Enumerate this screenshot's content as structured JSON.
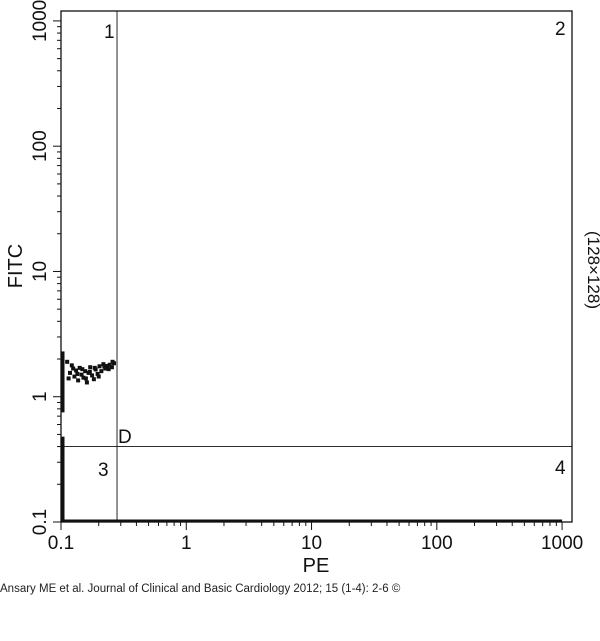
{
  "chart_data": {
    "type": "scatter",
    "x_scale": "log",
    "y_scale": "log",
    "xlabel": "PE",
    "ylabel": "FITC",
    "xlim": [
      0.1,
      1200
    ],
    "ylim": [
      0.1,
      1200
    ],
    "x_ticks": [
      {
        "value": 0.1,
        "label": "0.1"
      },
      {
        "value": 1,
        "label": "1"
      },
      {
        "value": 10,
        "label": "10"
      },
      {
        "value": 100,
        "label": "100"
      },
      {
        "value": 1000,
        "label": "1000"
      }
    ],
    "y_ticks": [
      {
        "value": 0.1,
        "label": "0.1"
      },
      {
        "value": 1,
        "label": "1"
      },
      {
        "value": 10,
        "label": "10"
      },
      {
        "value": 100,
        "label": "100"
      },
      {
        "value": 1000,
        "label": "1000"
      }
    ],
    "quadrant_gates": {
      "x": 0.28,
      "y": 0.4,
      "label": "D"
    },
    "quadrant_labels": [
      "1",
      "2",
      "3",
      "4"
    ],
    "side_label": "(128×128)",
    "grid": false,
    "points": [
      {
        "x": 0.112,
        "y": 1.9
      },
      {
        "x": 0.118,
        "y": 1.55
      },
      {
        "x": 0.122,
        "y": 1.78
      },
      {
        "x": 0.128,
        "y": 1.45
      },
      {
        "x": 0.132,
        "y": 1.62
      },
      {
        "x": 0.137,
        "y": 1.35
      },
      {
        "x": 0.141,
        "y": 1.7
      },
      {
        "x": 0.146,
        "y": 1.5
      },
      {
        "x": 0.151,
        "y": 1.42
      },
      {
        "x": 0.156,
        "y": 1.6
      },
      {
        "x": 0.161,
        "y": 1.3
      },
      {
        "x": 0.166,
        "y": 1.55
      },
      {
        "x": 0.171,
        "y": 1.72
      },
      {
        "x": 0.177,
        "y": 1.48
      },
      {
        "x": 0.183,
        "y": 1.38
      },
      {
        "x": 0.189,
        "y": 1.65
      },
      {
        "x": 0.196,
        "y": 1.52
      },
      {
        "x": 0.203,
        "y": 1.75
      },
      {
        "x": 0.21,
        "y": 1.6
      },
      {
        "x": 0.218,
        "y": 1.82
      },
      {
        "x": 0.226,
        "y": 1.68
      },
      {
        "x": 0.235,
        "y": 1.76
      },
      {
        "x": 0.245,
        "y": 1.8
      },
      {
        "x": 0.255,
        "y": 1.72
      },
      {
        "x": 0.265,
        "y": 1.85
      },
      {
        "x": 0.115,
        "y": 1.4
      },
      {
        "x": 0.125,
        "y": 1.68
      },
      {
        "x": 0.135,
        "y": 1.52
      },
      {
        "x": 0.148,
        "y": 1.66
      },
      {
        "x": 0.158,
        "y": 1.4
      },
      {
        "x": 0.17,
        "y": 1.58
      },
      {
        "x": 0.186,
        "y": 1.7
      },
      {
        "x": 0.2,
        "y": 1.45
      },
      {
        "x": 0.222,
        "y": 1.74
      },
      {
        "x": 0.24,
        "y": 1.66
      },
      {
        "x": 0.258,
        "y": 1.9
      }
    ],
    "axis_bands": [
      {
        "axis": "y",
        "at_x": 0.1,
        "from": 0.1,
        "to": 0.48
      },
      {
        "axis": "y",
        "at_x": 0.1,
        "from": 0.75,
        "to": 2.3
      },
      {
        "axis": "x",
        "at_y": 0.1,
        "from": 0.1,
        "to": 1000
      }
    ]
  },
  "citation": "Ansary ME et al. Journal of Clinical and Basic Cardiology 2012; 15 (1-4): 2-6 ©"
}
